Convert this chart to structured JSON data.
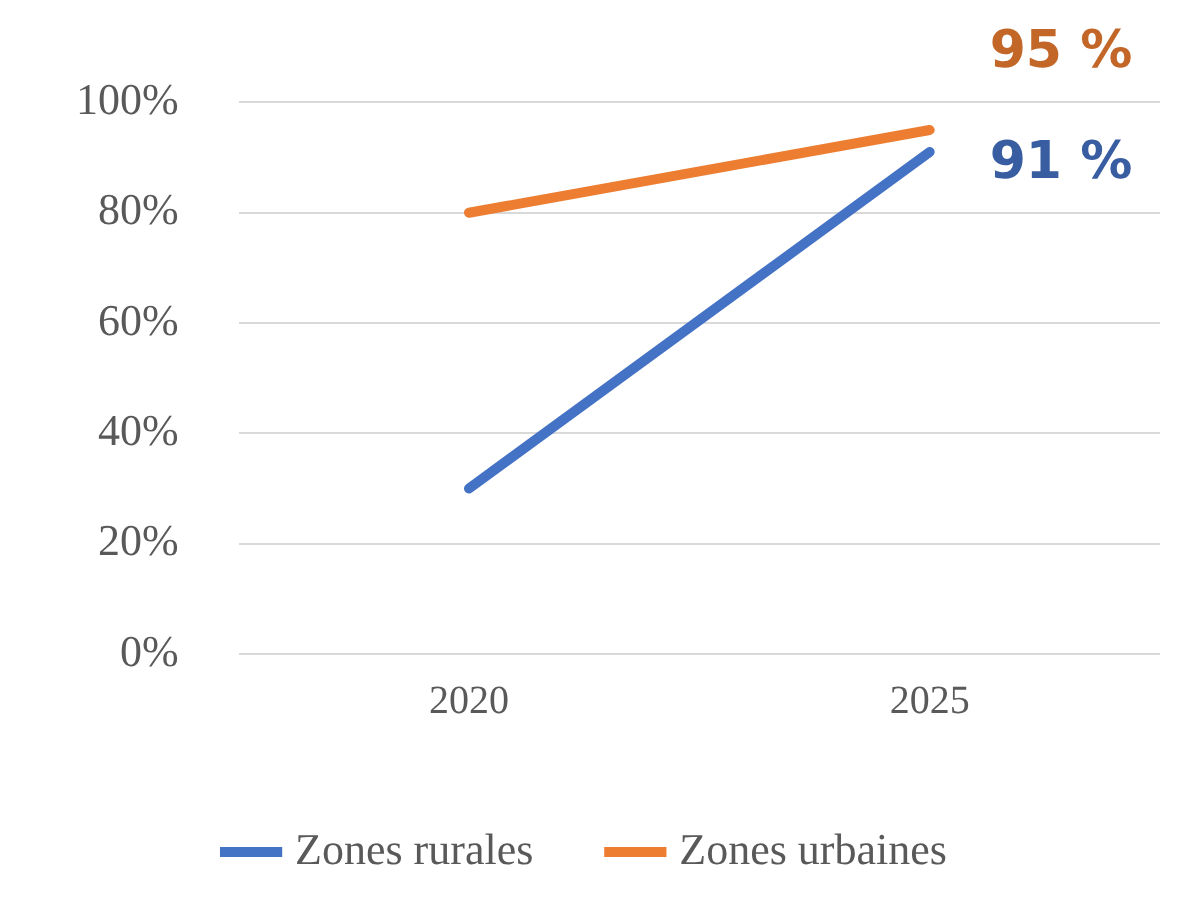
{
  "chart_data": {
    "type": "line",
    "categories": [
      "2020",
      "2025"
    ],
    "series": [
      {
        "name": "Zones rurales",
        "color": "#4472c4",
        "values": [
          30,
          91
        ],
        "value_labels": [
          null,
          "91 %"
        ]
      },
      {
        "name": "Zones urbaines",
        "color": "#ed7d31",
        "values": [
          80,
          95
        ],
        "value_labels": [
          null,
          "95 %"
        ]
      }
    ],
    "ylim": [
      0,
      100
    ],
    "yticks": [
      {
        "value": 0,
        "label": "0%"
      },
      {
        "value": 20,
        "label": "20%"
      },
      {
        "value": 40,
        "label": "40%"
      },
      {
        "value": 60,
        "label": "60%"
      },
      {
        "value": 80,
        "label": "80%"
      },
      {
        "value": 100,
        "label": "100%"
      }
    ],
    "grid": "y",
    "legend": "bottom",
    "marker": "none",
    "line_style": "solid"
  }
}
